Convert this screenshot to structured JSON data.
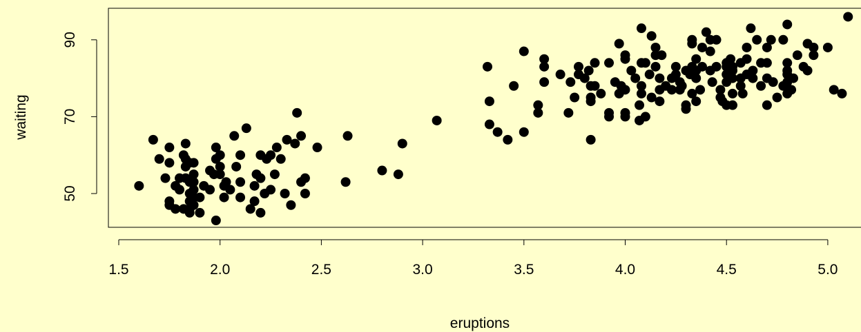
{
  "chart_data": {
    "type": "scatter",
    "title": "",
    "xlabel": "eruptions",
    "ylabel": "waiting",
    "xlim": [
      1.6,
      5.1
    ],
    "ylim": [
      43,
      96
    ],
    "x_ticks": [
      1.5,
      2.0,
      2.5,
      3.0,
      3.5,
      4.0,
      4.5,
      5.0
    ],
    "x_tick_labels": [
      "1.5",
      "2.0",
      "2.5",
      "3.0",
      "3.5",
      "4.0",
      "4.5",
      "5.0"
    ],
    "y_ticks": [
      50,
      70,
      90
    ],
    "y_tick_labels": [
      "50",
      "70",
      "90"
    ],
    "grid": false,
    "background": "#ffffcc",
    "point_color": "#000000",
    "points": [
      [
        1.6,
        52
      ],
      [
        1.67,
        64
      ],
      [
        1.7,
        59
      ],
      [
        1.73,
        54
      ],
      [
        1.75,
        62
      ],
      [
        1.75,
        58
      ],
      [
        1.75,
        48
      ],
      [
        1.75,
        47
      ],
      [
        1.78,
        52
      ],
      [
        1.78,
        46
      ],
      [
        1.8,
        54
      ],
      [
        1.8,
        51
      ],
      [
        1.82,
        60
      ],
      [
        1.82,
        46
      ],
      [
        1.83,
        63
      ],
      [
        1.83,
        59
      ],
      [
        1.83,
        57
      ],
      [
        1.83,
        54
      ],
      [
        1.85,
        58
      ],
      [
        1.85,
        53
      ],
      [
        1.85,
        50
      ],
      [
        1.85,
        48
      ],
      [
        1.85,
        46
      ],
      [
        1.85,
        45
      ],
      [
        1.87,
        58
      ],
      [
        1.87,
        55
      ],
      [
        1.87,
        53
      ],
      [
        1.87,
        51
      ],
      [
        1.87,
        49
      ],
      [
        1.87,
        47
      ],
      [
        1.9,
        45
      ],
      [
        1.9,
        49
      ],
      [
        1.92,
        52
      ],
      [
        1.95,
        51
      ],
      [
        1.95,
        56
      ],
      [
        1.97,
        55
      ],
      [
        1.98,
        43
      ],
      [
        1.98,
        62
      ],
      [
        1.98,
        59
      ],
      [
        2.0,
        60
      ],
      [
        2.0,
        57
      ],
      [
        2.0,
        55
      ],
      [
        2.02,
        52
      ],
      [
        2.02,
        49
      ],
      [
        2.03,
        53
      ],
      [
        2.05,
        51
      ],
      [
        2.07,
        65
      ],
      [
        2.08,
        57
      ],
      [
        2.1,
        60
      ],
      [
        2.1,
        53
      ],
      [
        2.1,
        49
      ],
      [
        2.13,
        67
      ],
      [
        2.15,
        46
      ],
      [
        2.17,
        52
      ],
      [
        2.17,
        48
      ],
      [
        2.18,
        55
      ],
      [
        2.2,
        60
      ],
      [
        2.2,
        54
      ],
      [
        2.2,
        45
      ],
      [
        2.22,
        50
      ],
      [
        2.23,
        59
      ],
      [
        2.25,
        60
      ],
      [
        2.25,
        51
      ],
      [
        2.27,
        55
      ],
      [
        2.28,
        62
      ],
      [
        2.3,
        59
      ],
      [
        2.32,
        50
      ],
      [
        2.33,
        64
      ],
      [
        2.35,
        47
      ],
      [
        2.37,
        63
      ],
      [
        2.38,
        71
      ],
      [
        2.4,
        65
      ],
      [
        2.4,
        53
      ],
      [
        2.42,
        54
      ],
      [
        2.42,
        50
      ],
      [
        2.48,
        62
      ],
      [
        2.62,
        53
      ],
      [
        2.63,
        65
      ],
      [
        2.8,
        56
      ],
      [
        2.88,
        55
      ],
      [
        2.9,
        63
      ],
      [
        3.07,
        69
      ],
      [
        3.32,
        83
      ],
      [
        3.33,
        74
      ],
      [
        3.33,
        68
      ],
      [
        3.37,
        66
      ],
      [
        3.42,
        64
      ],
      [
        3.45,
        78
      ],
      [
        3.5,
        87
      ],
      [
        3.5,
        66
      ],
      [
        3.57,
        73
      ],
      [
        3.57,
        71
      ],
      [
        3.6,
        85
      ],
      [
        3.6,
        83
      ],
      [
        3.6,
        79
      ],
      [
        3.68,
        81
      ],
      [
        3.72,
        71
      ],
      [
        3.73,
        79
      ],
      [
        3.75,
        75
      ],
      [
        3.77,
        83
      ],
      [
        3.77,
        81
      ],
      [
        3.8,
        80
      ],
      [
        3.82,
        82
      ],
      [
        3.83,
        78
      ],
      [
        3.83,
        75
      ],
      [
        3.83,
        74
      ],
      [
        3.83,
        64
      ],
      [
        3.85,
        84
      ],
      [
        3.85,
        78
      ],
      [
        3.88,
        76
      ],
      [
        3.92,
        84
      ],
      [
        3.92,
        71
      ],
      [
        3.92,
        70
      ],
      [
        3.95,
        79
      ],
      [
        3.97,
        89
      ],
      [
        3.97,
        76
      ],
      [
        3.98,
        78
      ],
      [
        4.0,
        86
      ],
      [
        4.0,
        85
      ],
      [
        4.0,
        77
      ],
      [
        4.0,
        71
      ],
      [
        4.0,
        70
      ],
      [
        4.03,
        82
      ],
      [
        4.05,
        80
      ],
      [
        4.07,
        73
      ],
      [
        4.07,
        69
      ],
      [
        4.08,
        93
      ],
      [
        4.08,
        84
      ],
      [
        4.08,
        78
      ],
      [
        4.08,
        76
      ],
      [
        4.1,
        84
      ],
      [
        4.1,
        70
      ],
      [
        4.12,
        81
      ],
      [
        4.13,
        91
      ],
      [
        4.13,
        75
      ],
      [
        4.15,
        88
      ],
      [
        4.15,
        86
      ],
      [
        4.15,
        83
      ],
      [
        4.17,
        80
      ],
      [
        4.17,
        77
      ],
      [
        4.17,
        74
      ],
      [
        4.18,
        86
      ],
      [
        4.2,
        78
      ],
      [
        4.23,
        80
      ],
      [
        4.23,
        77
      ],
      [
        4.25,
        83
      ],
      [
        4.25,
        81
      ],
      [
        4.27,
        79
      ],
      [
        4.27,
        77
      ],
      [
        4.28,
        78
      ],
      [
        4.3,
        82
      ],
      [
        4.3,
        73
      ],
      [
        4.3,
        72
      ],
      [
        4.32,
        81
      ],
      [
        4.33,
        90
      ],
      [
        4.33,
        89
      ],
      [
        4.33,
        83
      ],
      [
        4.33,
        76
      ],
      [
        4.35,
        85
      ],
      [
        4.35,
        82
      ],
      [
        4.35,
        80
      ],
      [
        4.35,
        74
      ],
      [
        4.37,
        77
      ],
      [
        4.38,
        88
      ],
      [
        4.38,
        83
      ],
      [
        4.4,
        92
      ],
      [
        4.42,
        90
      ],
      [
        4.42,
        87
      ],
      [
        4.42,
        82
      ],
      [
        4.43,
        79
      ],
      [
        4.45,
        90
      ],
      [
        4.45,
        83
      ],
      [
        4.47,
        77
      ],
      [
        4.47,
        75
      ],
      [
        4.48,
        74
      ],
      [
        4.5,
        84
      ],
      [
        4.5,
        83
      ],
      [
        4.5,
        81
      ],
      [
        4.5,
        79
      ],
      [
        4.5,
        73
      ],
      [
        4.52,
        85
      ],
      [
        4.53,
        83
      ],
      [
        4.53,
        82
      ],
      [
        4.53,
        80
      ],
      [
        4.53,
        76
      ],
      [
        4.53,
        73
      ],
      [
        4.57,
        84
      ],
      [
        4.57,
        80
      ],
      [
        4.57,
        78
      ],
      [
        4.58,
        76
      ],
      [
        4.6,
        88
      ],
      [
        4.6,
        85
      ],
      [
        4.6,
        81
      ],
      [
        4.62,
        93
      ],
      [
        4.63,
        82
      ],
      [
        4.63,
        80
      ],
      [
        4.65,
        90
      ],
      [
        4.67,
        84
      ],
      [
        4.67,
        78
      ],
      [
        4.7,
        88
      ],
      [
        4.7,
        84
      ],
      [
        4.7,
        80
      ],
      [
        4.7,
        73
      ],
      [
        4.72,
        90
      ],
      [
        4.73,
        79
      ],
      [
        4.75,
        75
      ],
      [
        4.78,
        90
      ],
      [
        4.78,
        78
      ],
      [
        4.8,
        94
      ],
      [
        4.8,
        84
      ],
      [
        4.8,
        82
      ],
      [
        4.8,
        81
      ],
      [
        4.8,
        79
      ],
      [
        4.8,
        76
      ],
      [
        4.82,
        77
      ],
      [
        4.83,
        80
      ],
      [
        4.85,
        86
      ],
      [
        4.88,
        83
      ],
      [
        4.9,
        89
      ],
      [
        4.9,
        82
      ],
      [
        4.93,
        88
      ],
      [
        4.93,
        86
      ],
      [
        5.0,
        88
      ],
      [
        5.03,
        77
      ],
      [
        5.07,
        76
      ],
      [
        5.1,
        96
      ]
    ]
  }
}
